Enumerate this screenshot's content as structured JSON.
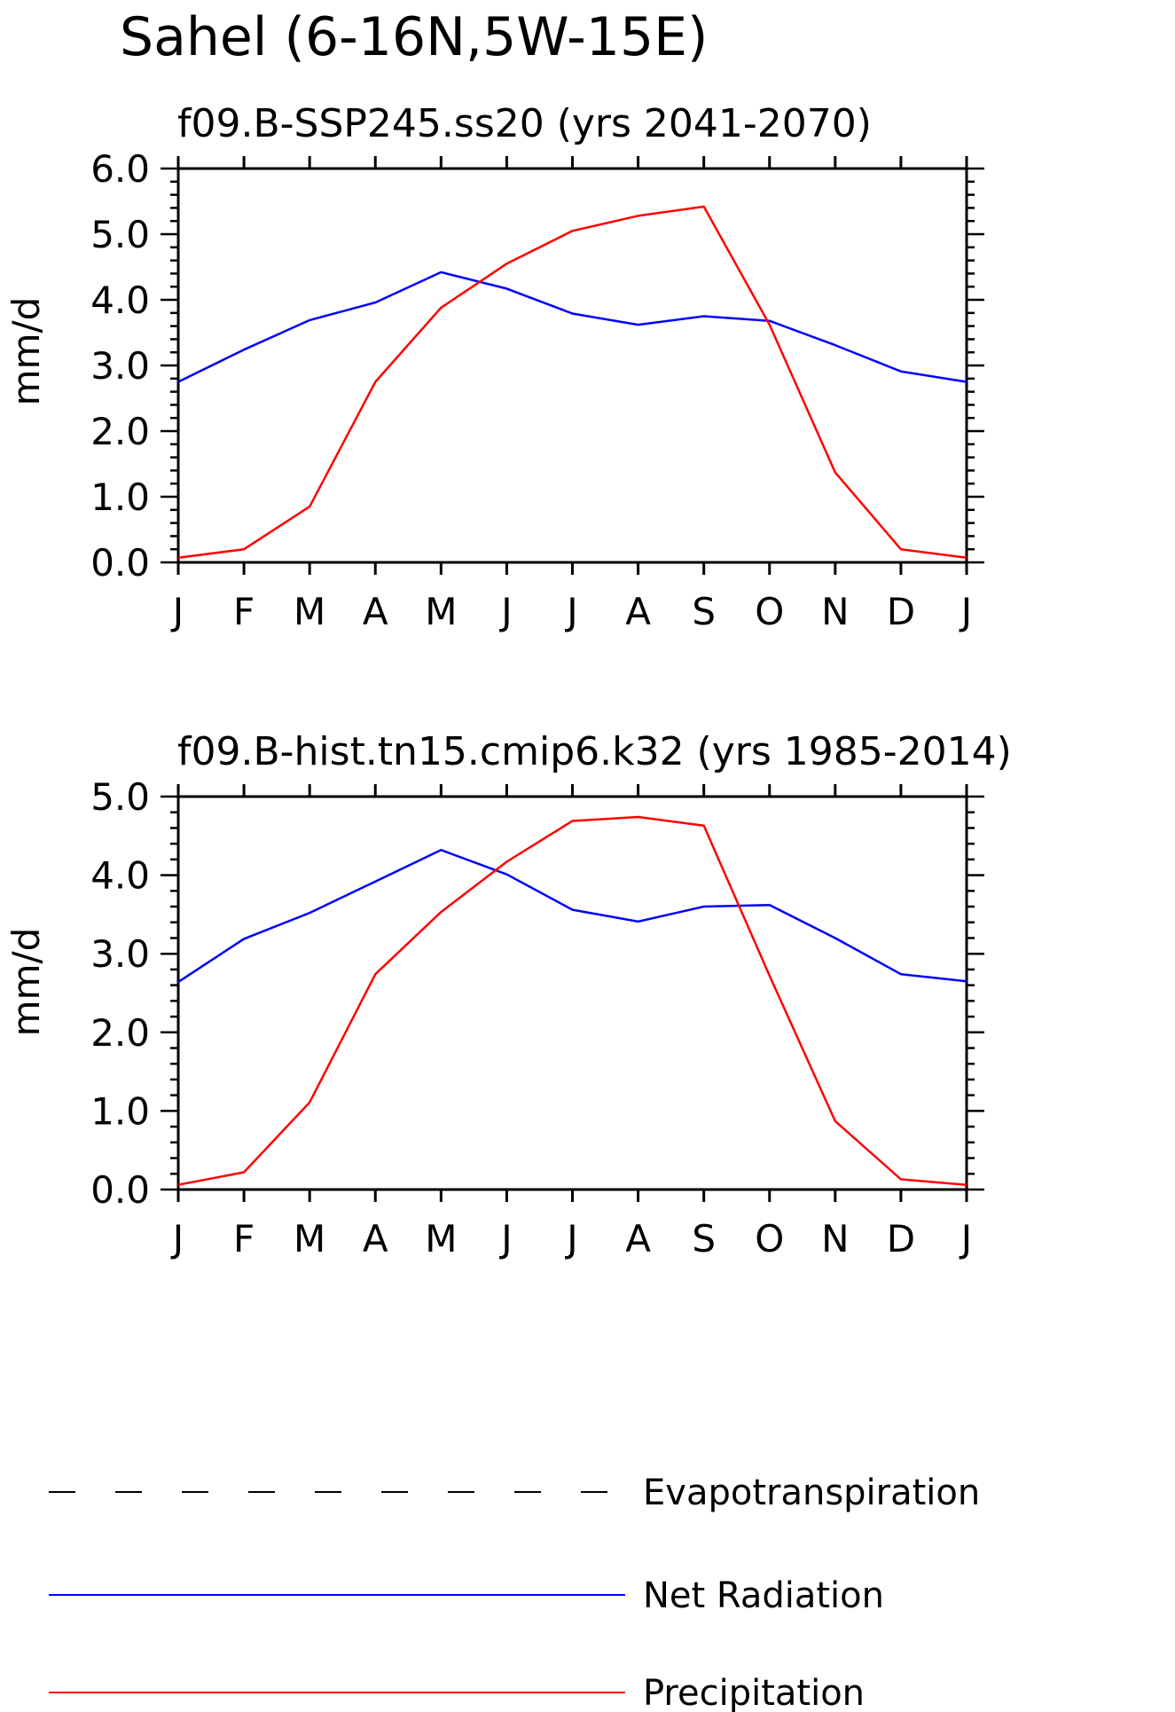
{
  "figure": {
    "title": "Sahel (6-16N,5W-15E)"
  },
  "legend": {
    "items": [
      {
        "label": "Evapotranspiration",
        "color": "#000000",
        "dashed": true
      },
      {
        "label": "Net Radiation",
        "color": "#0000ff",
        "dashed": false
      },
      {
        "label": "Precipitation",
        "color": "#ff0000",
        "dashed": false
      }
    ]
  },
  "chart_data": [
    {
      "type": "line",
      "title": "f09.B-SSP245.ss20 (yrs 2041-2070)",
      "xlabel": "",
      "ylabel": "mm/d",
      "categories": [
        "J",
        "F",
        "M",
        "A",
        "M",
        "J",
        "J",
        "A",
        "S",
        "O",
        "N",
        "D",
        "J"
      ],
      "ylim": [
        0,
        6
      ],
      "yticks": [
        "0.0",
        "1.0",
        "2.0",
        "3.0",
        "4.0",
        "5.0",
        "6.0"
      ],
      "series": [
        {
          "name": "Net Radiation",
          "color": "#0000ff",
          "values": [
            2.75,
            3.24,
            3.69,
            3.96,
            4.42,
            4.17,
            3.79,
            3.62,
            3.75,
            3.68,
            3.31,
            2.91,
            2.75
          ]
        },
        {
          "name": "Precipitation",
          "color": "#ff0000",
          "values": [
            0.07,
            0.2,
            0.85,
            2.75,
            3.88,
            4.55,
            5.05,
            5.28,
            5.42,
            3.62,
            1.37,
            0.2,
            0.07
          ]
        }
      ]
    },
    {
      "type": "line",
      "title": "f09.B-hist.tn15.cmip6.k32 (yrs 1985-2014)",
      "xlabel": "",
      "ylabel": "mm/d",
      "categories": [
        "J",
        "F",
        "M",
        "A",
        "M",
        "J",
        "J",
        "A",
        "S",
        "O",
        "N",
        "D",
        "J"
      ],
      "ylim": [
        0,
        5
      ],
      "yticks": [
        "0.0",
        "1.0",
        "2.0",
        "3.0",
        "4.0",
        "5.0"
      ],
      "series": [
        {
          "name": "Net Radiation",
          "color": "#0000ff",
          "values": [
            2.64,
            3.19,
            3.52,
            3.92,
            4.32,
            4.01,
            3.56,
            3.41,
            3.6,
            3.62,
            3.2,
            2.74,
            2.65
          ]
        },
        {
          "name": "Precipitation",
          "color": "#ff0000",
          "values": [
            0.06,
            0.22,
            1.11,
            2.74,
            3.53,
            4.17,
            4.69,
            4.74,
            4.63,
            2.72,
            0.87,
            0.13,
            0.06
          ]
        }
      ]
    }
  ]
}
